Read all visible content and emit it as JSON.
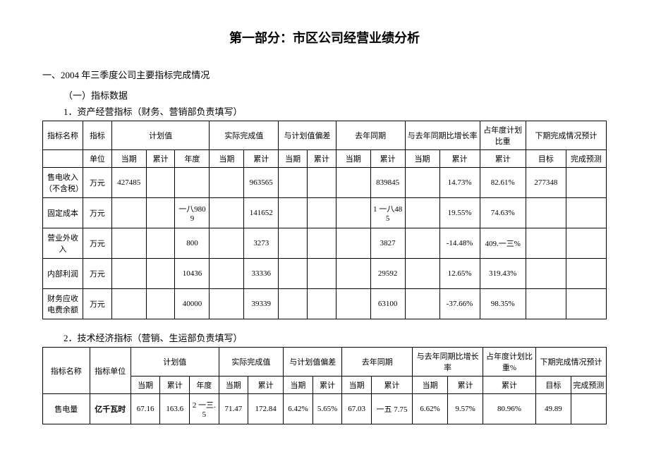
{
  "title": "第一部分：市区公司经营业绩分析",
  "heading1": "一、2004 年三季度公司主要指标完成情况",
  "heading2": "（一）指标数据",
  "heading3a": "1．资产经营指标（财务、营销部负责填写）",
  "heading3b": "2．技术经济指标（营销、生运部负责填写）",
  "table1": {
    "header_groups": {
      "name": "指标名称",
      "indicator": "指标",
      "plan": "计划值",
      "actual": "实际完成值",
      "diff": "与计划值偏差",
      "lastyear": "去年同期",
      "yoy": "与去年同期比增长率",
      "ratio": "占年度计划比重",
      "forecast": "下期完成情况预计"
    },
    "sub": {
      "unit": "单位",
      "current": "当期",
      "cum": "累计",
      "year": "年度",
      "target": "目标",
      "pred": "完成预测"
    },
    "rows": [
      {
        "name": "售电收入（不含税）",
        "unit": "万元",
        "plan_cur": "427485",
        "plan_cum": "",
        "plan_year": "",
        "act_cur": "",
        "act_cum": "963565",
        "diff_cur": "",
        "diff_cum": "",
        "ly_cur": "",
        "ly_cum": "839845",
        "yoy_cur": "",
        "yoy_cum": "14.73%",
        "ratio": "82.61%",
        "target": "277348",
        "pred": ""
      },
      {
        "name": "固定成本",
        "unit": "万元",
        "plan_cur": "",
        "plan_cum": "",
        "plan_year": "一八9809",
        "act_cur": "",
        "act_cum": "141652",
        "diff_cur": "",
        "diff_cum": "",
        "ly_cur": "",
        "ly_cum": "1 一八485",
        "yoy_cur": "",
        "yoy_cum": "19.55%",
        "ratio": "74.63%",
        "target": "",
        "pred": ""
      },
      {
        "name": "营业外收入",
        "unit": "万元",
        "plan_cur": "",
        "plan_cum": "",
        "plan_year": "800",
        "act_cur": "",
        "act_cum": "3273",
        "diff_cur": "",
        "diff_cum": "",
        "ly_cur": "",
        "ly_cum": "3827",
        "yoy_cur": "",
        "yoy_cum": "-14.48%",
        "ratio": "409.一三%",
        "target": "",
        "pred": ""
      },
      {
        "name": "内部利润",
        "unit": "万元",
        "plan_cur": "",
        "plan_cum": "",
        "plan_year": "10436",
        "act_cur": "",
        "act_cum": "33336",
        "diff_cur": "",
        "diff_cum": "",
        "ly_cur": "",
        "ly_cum": "29592",
        "yoy_cur": "",
        "yoy_cum": "12.65%",
        "ratio": "319.43%",
        "target": "",
        "pred": ""
      },
      {
        "name": "财务应收电费余额",
        "unit": "万元",
        "plan_cur": "",
        "plan_cum": "",
        "plan_year": "40000",
        "act_cur": "",
        "act_cum": "39339",
        "diff_cur": "",
        "diff_cum": "",
        "ly_cur": "",
        "ly_cum": "63100",
        "yoy_cur": "",
        "yoy_cum": "-37.66%",
        "ratio": "98.35%",
        "target": "",
        "pred": ""
      }
    ]
  },
  "table2": {
    "header_groups": {
      "name": "指标名称",
      "unit": "指标单位",
      "plan": "计划值",
      "actual": "实际完成值",
      "diff": "与计划值偏差",
      "lastyear": "去年同期",
      "yoy": "与去年同期比增长率",
      "ratio": "占年度计划比重%",
      "forecast": "下期完成情况预计"
    },
    "sub": {
      "current": "当期",
      "cum": "累计",
      "year": "年度",
      "target": "目标",
      "pred": "完成预测"
    },
    "rows": [
      {
        "name": "售电量",
        "unit": "亿千瓦时",
        "plan_cur": "67.16",
        "plan_cum": "163.6",
        "plan_year": "2 一三.5",
        "act_cur": "71.47",
        "act_cum": "172.84",
        "diff_cur": "6.42%",
        "diff_cum": "5.65%",
        "ly_cur": "67.03",
        "ly_cum": "一五 7.75",
        "yoy_cur": "6.62%",
        "yoy_cum": "9.57%",
        "ratio": "80.96%",
        "target": "49.89",
        "pred": ""
      }
    ]
  }
}
